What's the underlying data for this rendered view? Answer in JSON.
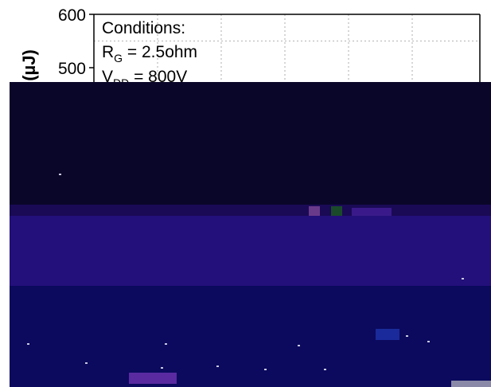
{
  "chart_data": {
    "type": "line",
    "title": "",
    "ylabel": "(µJ)",
    "xlabel": "",
    "ylim": [
      0,
      600
    ],
    "yticks": [
      500,
      600
    ],
    "grid": true,
    "series": [],
    "annotations": {
      "heading": "Conditions:",
      "rg_main": "R",
      "rg_sub": "G",
      "rg_value": " = 2.5ohm",
      "vdd_main": "V",
      "vdd_sub": "DD",
      "vdd_value": " = 800V"
    }
  },
  "colors": {
    "axis": "#000000",
    "grid": "#9a9a9a",
    "corrupt_dark": "#0a0629",
    "corrupt_purple": "#24107a",
    "corrupt_blue": "#0b0a5e"
  }
}
